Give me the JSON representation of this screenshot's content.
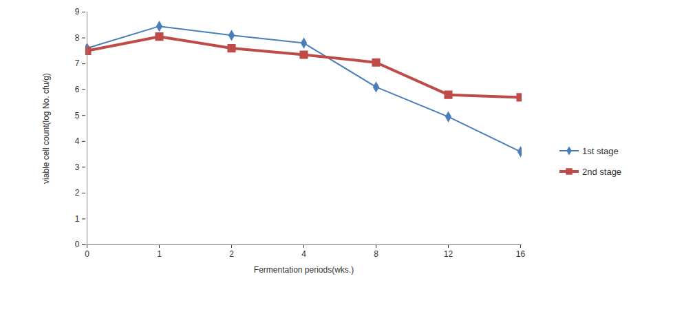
{
  "chart_data": {
    "type": "line",
    "x_label": "Fermentation periods(wks.)",
    "y_label": "viable cell count(log No. cfu/g)",
    "categories": [
      "0",
      "1",
      "2",
      "4",
      "8",
      "12",
      "16"
    ],
    "series": [
      {
        "name": "1st stage",
        "color": "#4a7ebb",
        "marker": "diamond",
        "values": [
          7.6,
          8.45,
          8.1,
          7.8,
          6.1,
          4.95,
          3.6
        ]
      },
      {
        "name": "2nd stage",
        "color": "#be4b48",
        "marker": "square",
        "values": [
          7.5,
          8.05,
          7.6,
          7.35,
          7.05,
          5.8,
          5.7
        ]
      }
    ],
    "ylim": [
      0,
      9
    ],
    "yticks": [
      0,
      1,
      2,
      3,
      4,
      5,
      6,
      7,
      8,
      9
    ],
    "grid": false,
    "legend": "right"
  }
}
